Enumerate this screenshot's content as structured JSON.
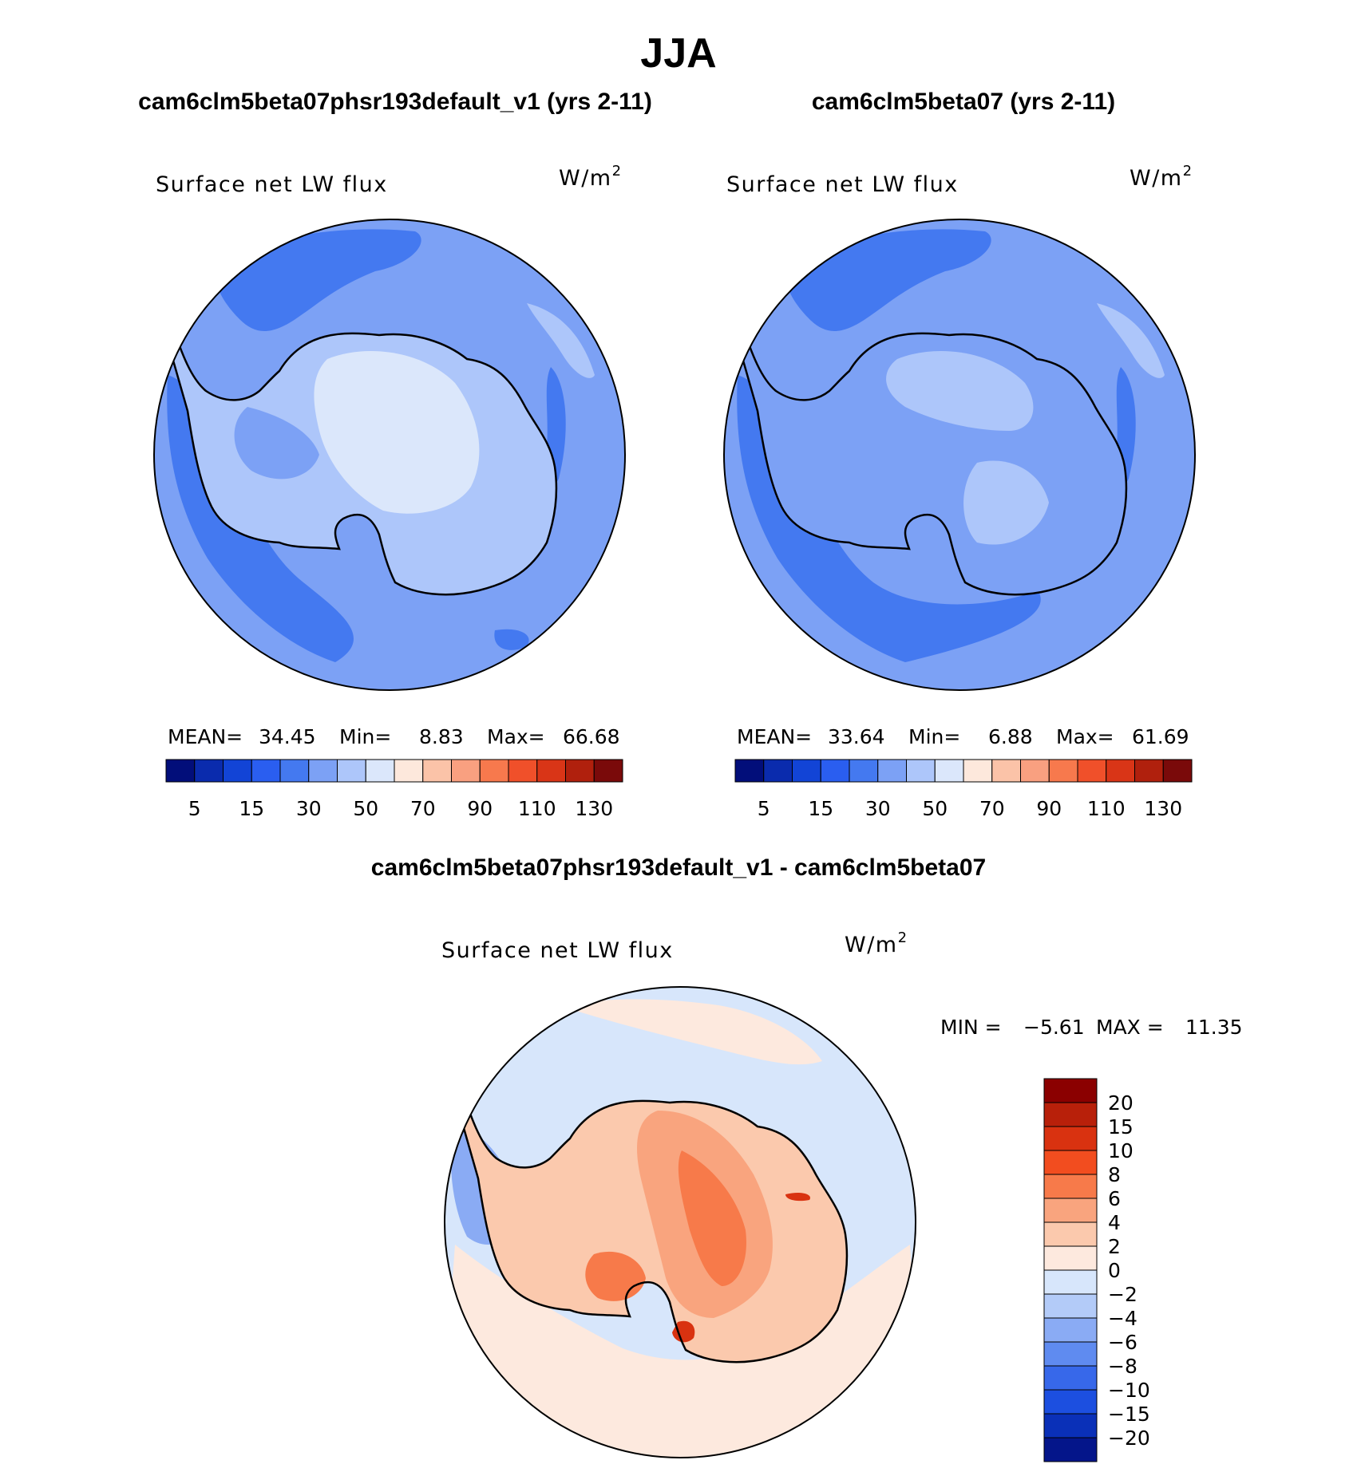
{
  "figure": {
    "title": "JJA"
  },
  "chart_data": [
    {
      "type": "heatmap",
      "panel": "model-a",
      "case_title": "cam6clm5beta07phsr193default_v1 (yrs 2-11)",
      "variable": "Surface net LW flux",
      "units_base": "W/m",
      "units_exp": "2",
      "projection": "south-polar-stereographic",
      "stats": {
        "mean_label": "MEAN=",
        "mean": "34.45",
        "min_label": "Min=",
        "min": "8.83",
        "max_label": "Max=",
        "max": "66.68"
      },
      "colorbar": {
        "orientation": "horizontal",
        "colors": [
          "#020e7a",
          "#0a2bad",
          "#1244d6",
          "#2a5ef0",
          "#4479f0",
          "#7ca1f5",
          "#adc6fa",
          "#dbe7fb",
          "#fde8dc",
          "#fbc3a8",
          "#f9a080",
          "#f7794d",
          "#f0502a",
          "#d93517",
          "#b0200d",
          "#7a0a0a"
        ],
        "tick_labels": [
          "5",
          "15",
          "30",
          "50",
          "70",
          "90",
          "110",
          "130"
        ]
      },
      "field_levels": {
        "ocean_background": 30,
        "ocean_band": 15,
        "continent_interior": 50,
        "plateau": 60
      }
    },
    {
      "type": "heatmap",
      "panel": "model-b",
      "case_title": "cam6clm5beta07 (yrs 2-11)",
      "variable": "Surface net LW flux",
      "units_base": "W/m",
      "units_exp": "2",
      "projection": "south-polar-stereographic",
      "stats": {
        "mean_label": "MEAN=",
        "mean": "33.64",
        "min_label": "Min=",
        "min": "6.88",
        "max_label": "Max=",
        "max": "61.69"
      },
      "colorbar": {
        "orientation": "horizontal",
        "colors": [
          "#020e7a",
          "#0a2bad",
          "#1244d6",
          "#2a5ef0",
          "#4479f0",
          "#7ca1f5",
          "#adc6fa",
          "#dbe7fb",
          "#fde8dc",
          "#fbc3a8",
          "#f9a080",
          "#f7794d",
          "#f0502a",
          "#d93517",
          "#b0200d",
          "#7a0a0a"
        ],
        "tick_labels": [
          "5",
          "15",
          "30",
          "50",
          "70",
          "90",
          "110",
          "130"
        ]
      },
      "field_levels": {
        "ocean_background": 30,
        "ocean_band": 15,
        "continent_interior": 40,
        "plateau": 55
      }
    },
    {
      "type": "heatmap",
      "panel": "difference",
      "case_title": "cam6clm5beta07phsr193default_v1 - cam6clm5beta07",
      "variable": "Surface net LW flux",
      "units_base": "W/m",
      "units_exp": "2",
      "projection": "south-polar-stereographic",
      "stats": {
        "min_label": "MIN =",
        "min": "−5.61",
        "max_label": "MAX =",
        "max": "11.35"
      },
      "colorbar": {
        "orientation": "vertical",
        "colors_top_to_bottom": [
          "#8b0000",
          "#b8200a",
          "#d93210",
          "#f24d1f",
          "#f77a4a",
          "#f9a47e",
          "#fbc9ad",
          "#fde9de",
          "#d7e6fb",
          "#b3cbf8",
          "#8aabf4",
          "#5f8bf0",
          "#3768ea",
          "#1c4fe0",
          "#0a30b8",
          "#04158a"
        ],
        "tick_labels": [
          "20",
          "15",
          "10",
          "8",
          "6",
          "4",
          "2",
          "0",
          "−2",
          "−4",
          "−6",
          "−8",
          "−10",
          "−15",
          "−20"
        ]
      },
      "field_levels": {
        "ocean_background": 0,
        "ocean_positive": 2,
        "continent": 4,
        "ridge": 6,
        "hotspot": 10
      }
    }
  ]
}
